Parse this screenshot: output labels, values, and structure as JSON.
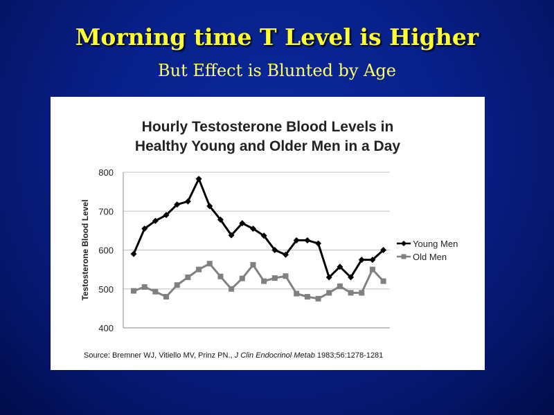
{
  "slide": {
    "title": "Morning time T Level is Higher",
    "subtitle": "But Effect is Blunted by Age"
  },
  "colors": {
    "title": "#ffff33",
    "young_series": "#000000",
    "old_series": "#808080",
    "gridline": "#c0c0c0"
  },
  "chart_data": {
    "type": "line",
    "title_line1": "Hourly Testosterone Blood Levels in",
    "title_line2": "Healthy Young and Older Men in a Day",
    "ylabel": "Testosterone Blood Level",
    "xlabel": "",
    "ylim": [
      400,
      800
    ],
    "yticks": [
      400,
      500,
      600,
      700,
      800
    ],
    "grid": true,
    "legend_placement": "right",
    "series": [
      {
        "name": "Young Men",
        "marker": "diamond",
        "values": [
          590,
          655,
          675,
          690,
          717,
          725,
          783,
          713,
          678,
          638,
          669,
          655,
          637,
          600,
          588,
          625,
          625,
          617,
          530,
          557,
          530,
          575,
          575,
          600
        ]
      },
      {
        "name": "Old Men",
        "marker": "square",
        "values": [
          495,
          505,
          493,
          480,
          510,
          530,
          550,
          565,
          532,
          500,
          527,
          562,
          520,
          528,
          533,
          488,
          480,
          475,
          490,
          507,
          490,
          490,
          550,
          520
        ]
      }
    ]
  },
  "source": {
    "prefix": "Source: Bremner WJ, Vitiello MV, Prinz PN., ",
    "journal": "J Clin Endocrinol Metab",
    "suffix": " 1983;56:1278-1281"
  }
}
